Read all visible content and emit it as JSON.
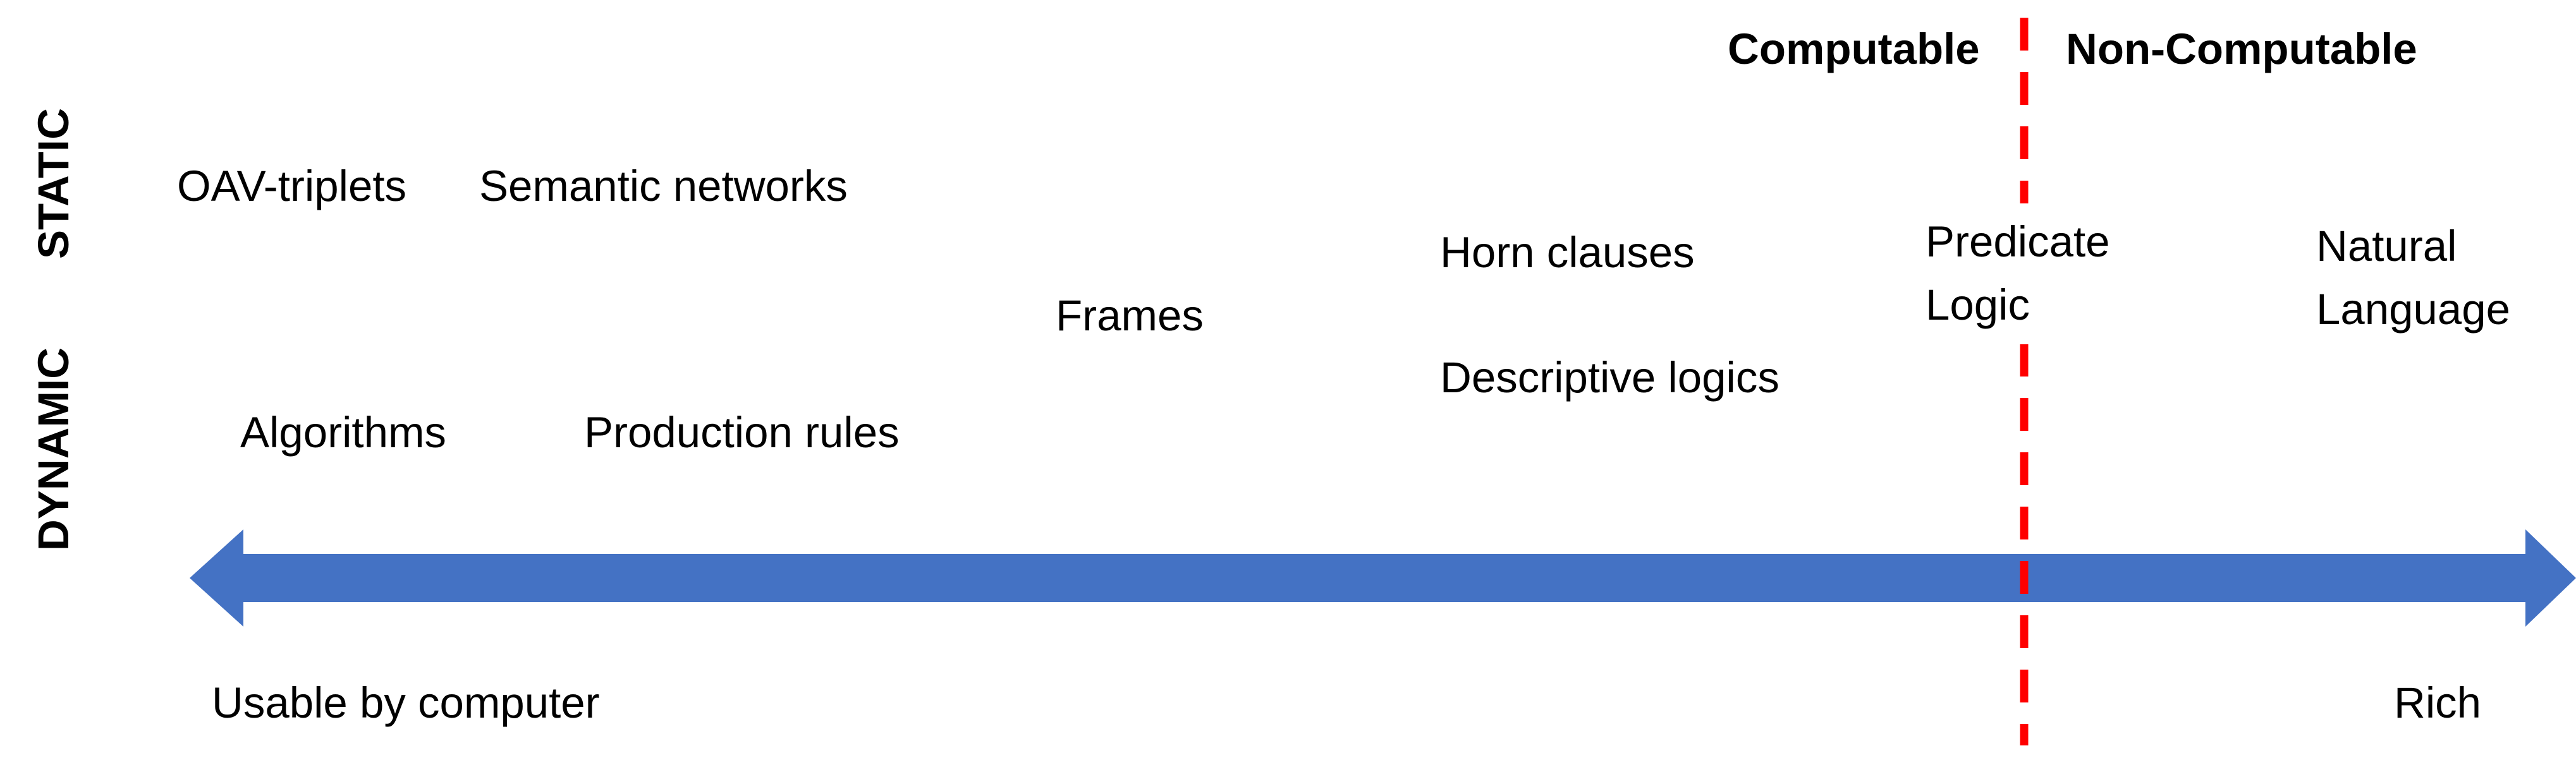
{
  "regions": {
    "left": "Computable",
    "right": "Non-Computable"
  },
  "rows": {
    "static": "STATIC",
    "dynamic": "DYNAMIC"
  },
  "items": {
    "oav_triplets": "OAV-triplets",
    "semantic_networks": "Semantic networks",
    "frames": "Frames",
    "horn_clauses": "Horn clauses",
    "descriptive_logics": "Descriptive logics",
    "predicate_logic_line1": "Predicate",
    "predicate_logic_line2": "Logic",
    "natural_language_line1": "Natural",
    "natural_language_line2": "Language",
    "algorithms": "Algorithms",
    "production_rules": "Production rules"
  },
  "axis": {
    "left_end": "Usable by computer",
    "right_end": "Rich"
  },
  "colors": {
    "arrow": "#4472C4",
    "divider": "#FF0000",
    "text": "#000000"
  }
}
